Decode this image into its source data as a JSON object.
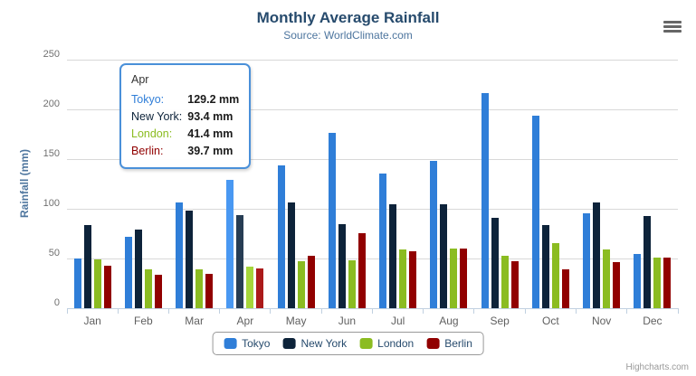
{
  "header": {
    "title": "Monthly Average Rainfall",
    "subtitle": "Source: WorldClimate.com"
  },
  "credits": "Highcharts.com",
  "icons": {
    "context_menu": "hamburger-menu-icon"
  },
  "chart_data": {
    "type": "bar",
    "title": "Monthly Average Rainfall",
    "subtitle": "Source: WorldClimate.com",
    "categories": [
      "Jan",
      "Feb",
      "Mar",
      "Apr",
      "May",
      "Jun",
      "Jul",
      "Aug",
      "Sep",
      "Oct",
      "Nov",
      "Dec"
    ],
    "series": [
      {
        "name": "Tokyo",
        "color": "#2f7ed8",
        "hover_color": "#4998f2",
        "values": [
          49.9,
          71.5,
          106.4,
          129.2,
          144.0,
          176.0,
          135.6,
          148.5,
          216.4,
          194.1,
          95.6,
          54.4
        ]
      },
      {
        "name": "New York",
        "color": "#0d233a",
        "hover_color": "#273d54",
        "values": [
          83.6,
          78.8,
          98.5,
          93.4,
          106.0,
          84.5,
          105.0,
          104.3,
          91.2,
          83.5,
          106.6,
          92.3
        ]
      },
      {
        "name": "London",
        "color": "#8bbc21",
        "hover_color": "#a5d63b",
        "values": [
          48.9,
          38.8,
          39.3,
          41.4,
          47.0,
          48.3,
          59.0,
          59.6,
          52.4,
          65.2,
          59.3,
          51.2
        ]
      },
      {
        "name": "Berlin",
        "color": "#910000",
        "hover_color": "#ab1a1a",
        "values": [
          42.4,
          33.2,
          34.5,
          39.7,
          52.6,
          75.5,
          57.4,
          60.4,
          47.6,
          39.1,
          46.8,
          51.1
        ]
      }
    ],
    "xlabel": "",
    "ylabel": "Rainfall (mm)",
    "ylim": [
      0,
      250
    ],
    "yticks": [
      0,
      50,
      100,
      150,
      200,
      250
    ],
    "grid": true,
    "legend_position": "bottom",
    "hovered_category": "Apr",
    "hovered_category_index": 3,
    "tooltip": {
      "header": "Apr",
      "rows": [
        {
          "label": "Tokyo:",
          "value": "129.2 mm",
          "color": "#2f7ed8"
        },
        {
          "label": "New York:",
          "value": "93.4 mm",
          "color": "#0d233a"
        },
        {
          "label": "London:",
          "value": "41.4 mm",
          "color": "#8bbc21"
        },
        {
          "label": "Berlin:",
          "value": "39.7 mm",
          "color": "#910000"
        }
      ]
    },
    "colors": {
      "grid_line": "#d8d8d8",
      "axis_line": "#c0d0e0",
      "tooltip_border": "#4a90d9",
      "title_text": "#274b6d",
      "subtitle_text": "#4d759e"
    }
  }
}
